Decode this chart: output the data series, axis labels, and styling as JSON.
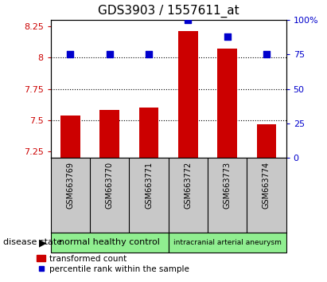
{
  "title": "GDS3903 / 1557611_at",
  "samples": [
    "GSM663769",
    "GSM663770",
    "GSM663771",
    "GSM663772",
    "GSM663773",
    "GSM663774"
  ],
  "red_values": [
    7.54,
    7.58,
    7.6,
    8.21,
    8.07,
    7.47
  ],
  "blue_values": [
    75,
    75,
    75,
    100,
    88,
    75
  ],
  "ylim_left": [
    7.2,
    8.3
  ],
  "ylim_right": [
    0,
    100
  ],
  "yticks_left": [
    7.25,
    7.5,
    7.75,
    8.0,
    8.25
  ],
  "yticks_right": [
    0,
    25,
    50,
    75,
    100
  ],
  "ytick_labels_left": [
    "7.25",
    "7.5",
    "7.75",
    "8",
    "8.25"
  ],
  "ytick_labels_right": [
    "0",
    "25",
    "50",
    "75",
    "100%"
  ],
  "gridlines": [
    7.5,
    7.75,
    8.0
  ],
  "group1_label": "normal healthy control",
  "group2_label": "intracranial arterial aneurysm",
  "disease_label": "disease state",
  "legend_red": "transformed count",
  "legend_blue": "percentile rank within the sample",
  "bar_color": "#cc0000",
  "dot_color": "#0000cc",
  "group1_color": "#90ee90",
  "group2_color": "#90ee90",
  "bar_bottom": 7.2,
  "bar_width": 0.5,
  "dot_size": 35,
  "background_color": "#c8c8c8",
  "plot_bg": "#ffffff"
}
